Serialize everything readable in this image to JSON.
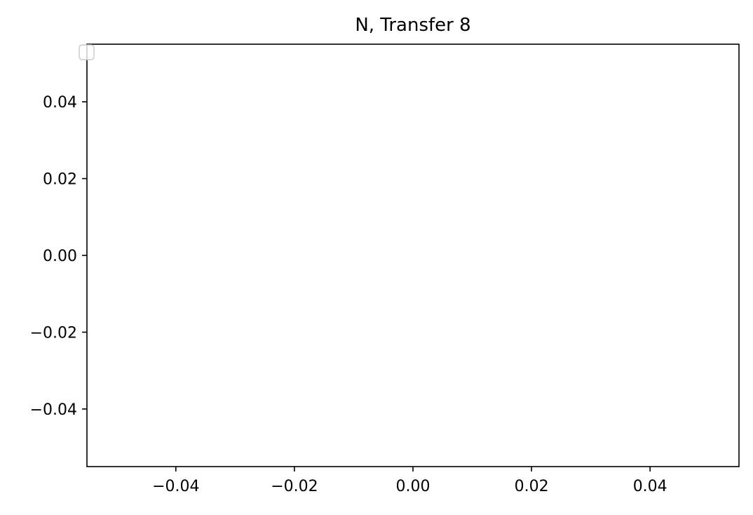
{
  "chart_data": {
    "type": "line",
    "title": "N, Transfer 8",
    "xlabel": "",
    "ylabel": "",
    "xlim": [
      -0.055,
      0.055
    ],
    "ylim": [
      -0.055,
      0.055
    ],
    "x_ticks": [
      -0.04,
      -0.02,
      0.0,
      0.02,
      0.04
    ],
    "x_tick_labels": [
      "−0.04",
      "−0.02",
      "0.00",
      "0.02",
      "0.04"
    ],
    "y_ticks": [
      0.04,
      0.02,
      0.0,
      -0.02,
      -0.04
    ],
    "y_tick_labels": [
      "0.04",
      "0.02",
      "0.00",
      "−0.02",
      "−0.04"
    ],
    "series": [],
    "grid": false,
    "legend": {
      "placement": "upper-left",
      "entries": []
    }
  },
  "colors": {
    "axes": "#000000",
    "background": "#ffffff",
    "legend_border": "#cccccc"
  }
}
